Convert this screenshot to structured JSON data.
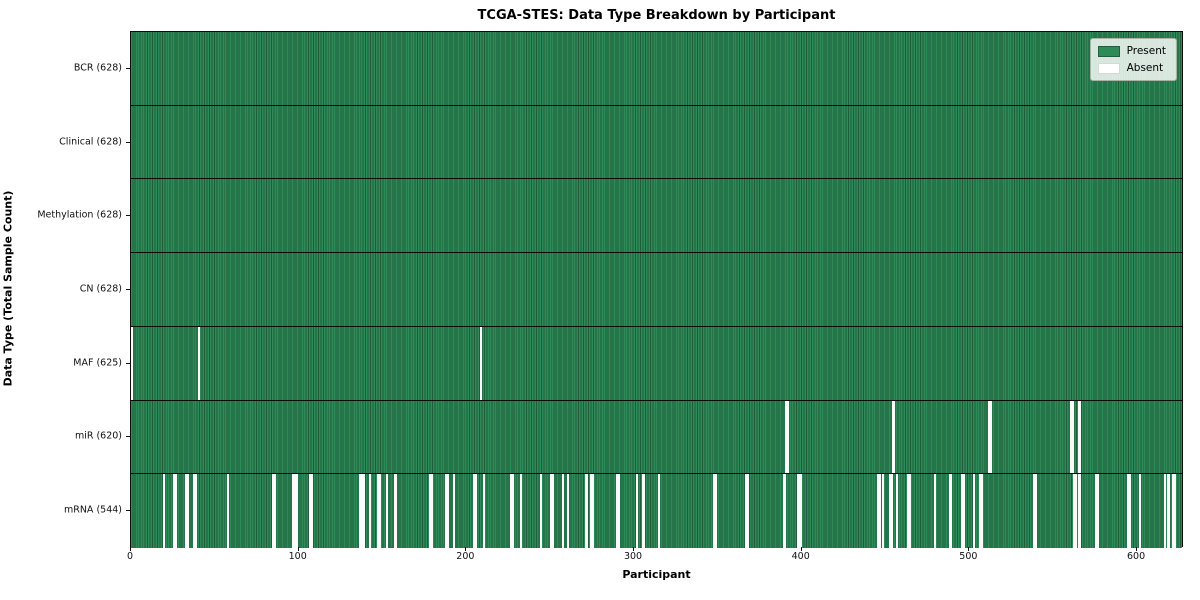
{
  "title": "TCGA-STES: Data Type Breakdown by Participant",
  "axes": {
    "xlabel": "Participant",
    "ylabel": "Data Type (Total Sample Count)"
  },
  "legend": {
    "items": [
      {
        "label": "Present",
        "color": "#2e8b57"
      },
      {
        "label": "Absent",
        "color": "#ffffff"
      }
    ]
  },
  "chart_data": {
    "type": "heatmap",
    "title": "TCGA-STES: Data Type Breakdown by Participant",
    "xlabel": "Participant",
    "ylabel": "Data Type (Total Sample Count)",
    "n_participants": 628,
    "x_ticks": [
      0,
      100,
      200,
      300,
      400,
      500,
      600
    ],
    "legend": [
      "Present",
      "Absent"
    ],
    "colors": {
      "present": "#2e8b57",
      "present_edge": "#1e5e3c",
      "absent": "#ffffff"
    },
    "rows": [
      {
        "label": "BCR",
        "total": 628,
        "display": "BCR (628)",
        "absent": []
      },
      {
        "label": "Clinical",
        "total": 628,
        "display": "Clinical (628)",
        "absent": []
      },
      {
        "label": "Methylation",
        "total": 628,
        "display": "Methylation (628)",
        "absent": []
      },
      {
        "label": "CN",
        "total": 628,
        "display": "CN (628)",
        "absent": []
      },
      {
        "label": "MAF",
        "total": 625,
        "display": "MAF (625)",
        "absent": [
          0,
          40,
          208
        ]
      },
      {
        "label": "miR",
        "total": 620,
        "display": "miR (620)",
        "absent": [
          390,
          391,
          454,
          511,
          512,
          560,
          561,
          565
        ]
      },
      {
        "label": "mRNA",
        "total": 544,
        "display": "mRNA (544)",
        "absent": [
          19,
          25,
          26,
          32,
          33,
          37,
          38,
          57,
          84,
          85,
          96,
          97,
          98,
          106,
          107,
          136,
          137,
          138,
          142,
          147,
          148,
          152,
          157,
          178,
          179,
          187,
          188,
          192,
          204,
          205,
          210,
          226,
          227,
          232,
          244,
          250,
          251,
          257,
          260,
          271,
          274,
          275,
          289,
          290,
          301,
          305,
          314,
          347,
          348,
          366,
          367,
          389,
          397,
          398,
          399,
          445,
          446,
          448,
          452,
          453,
          456,
          463,
          464,
          479,
          488,
          495,
          496,
          502,
          506,
          507,
          538,
          539,
          562,
          563,
          565,
          575,
          576,
          594,
          595,
          601,
          616,
          618,
          621,
          622
        ]
      }
    ]
  }
}
